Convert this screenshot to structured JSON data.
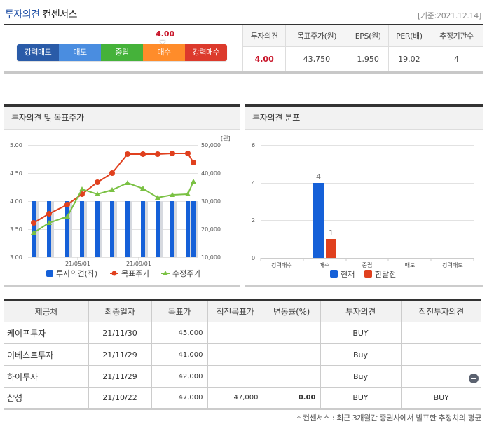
{
  "header": {
    "title_blue": "투자의견",
    "title_dark": "컨센서스",
    "basis_date": "[기준:2021.12.14]"
  },
  "gauge": {
    "value": "4.00",
    "segments": [
      {
        "label": "강력매도",
        "color": "#2a5ba8"
      },
      {
        "label": "매도",
        "color": "#4a8de0"
      },
      {
        "label": "중립",
        "color": "#45b23a"
      },
      {
        "label": "매수",
        "color": "#ff8c2a"
      },
      {
        "label": "강력매수",
        "color": "#dc3a2c"
      }
    ]
  },
  "summary": {
    "headers": [
      "투자의견",
      "목표주가(원)",
      "EPS(원)",
      "PER(배)",
      "추정기관수"
    ],
    "values": [
      "4.00",
      "43,750",
      "1,950",
      "19.02",
      "4"
    ]
  },
  "left_panel": {
    "title": "투자의견 및 목표주가"
  },
  "right_panel": {
    "title": "투자의견 분포"
  },
  "chart_data": [
    {
      "type": "bar+line",
      "title": "투자의견 및 목표주가",
      "x_tick_labels": [
        "21/05/01",
        "21/09/01"
      ],
      "y_left": {
        "ticks": [
          "5.00",
          "4.50",
          "4.00",
          "3.50",
          "3.00"
        ],
        "range": [
          3.0,
          5.0
        ]
      },
      "y_right": {
        "ticks": [
          "50,000",
          "40,000",
          "30,000",
          "20,000",
          "10,000"
        ],
        "range": [
          10000,
          50000
        ],
        "unit": "[원]"
      },
      "series": [
        {
          "name": "투자의견(좌)",
          "type": "bar",
          "color": "#1560d8",
          "values": [
            4.0,
            4.0,
            4.0,
            4.0,
            4.0,
            4.0,
            4.0,
            4.0,
            4.0,
            4.0,
            4.0,
            4.0
          ]
        },
        {
          "name": "목표주가",
          "type": "line",
          "marker": "circle",
          "color": "#e0401e",
          "values": [
            22250,
            25500,
            28750,
            32500,
            36750,
            40000,
            46750,
            46750,
            46750,
            47000,
            47000,
            43750
          ]
        },
        {
          "name": "수정주가",
          "type": "line",
          "marker": "triangle",
          "color": "#7ac143",
          "values": [
            18750,
            22250,
            24500,
            34250,
            32500,
            34000,
            36500,
            34500,
            31250,
            32250,
            32500,
            37000
          ]
        }
      ],
      "legend": [
        "투자의견(좌)",
        "목표주가",
        "수정주가"
      ],
      "legend_position": "bottom",
      "grid": true
    },
    {
      "type": "bar",
      "title": "투자의견 분포",
      "categories": [
        "강력매수",
        "매수",
        "중립",
        "매도",
        "강력매도"
      ],
      "series": [
        {
          "name": "현재",
          "color": "#1560d8",
          "values": [
            0,
            4,
            0,
            0,
            0
          ]
        },
        {
          "name": "한달전",
          "color": "#e0401e",
          "values": [
            0,
            1,
            0,
            0,
            0
          ]
        }
      ],
      "y_ticks": [
        "6",
        "4",
        "2",
        "0"
      ],
      "ylim": [
        0,
        6
      ],
      "data_labels": [
        "4",
        "1"
      ],
      "legend": [
        "현재",
        "한달전"
      ],
      "legend_position": "bottom",
      "grid": true
    }
  ],
  "list": {
    "headers": [
      "제공처",
      "최종일자",
      "목표가",
      "직전목표가",
      "변동률(%)",
      "투자의견",
      "직전투자의견"
    ],
    "rows": [
      {
        "provider": "케이프투자",
        "date": "21/11/30",
        "target": "45,000",
        "prev_target": "",
        "change": "",
        "opinion": "BUY",
        "prev_opinion": ""
      },
      {
        "provider": "이베스트투자",
        "date": "21/11/29",
        "target": "41,000",
        "prev_target": "",
        "change": "",
        "opinion": "Buy",
        "prev_opinion": ""
      },
      {
        "provider": "하이투자",
        "date": "21/11/29",
        "target": "42,000",
        "prev_target": "",
        "change": "",
        "opinion": "Buy",
        "prev_opinion": ""
      },
      {
        "provider": "삼성",
        "date": "21/10/22",
        "target": "47,000",
        "prev_target": "47,000",
        "change": "0.00",
        "opinion": "BUY",
        "prev_opinion": "BUY"
      }
    ]
  },
  "footnote": "* 컨센서스 : 최근 3개월간 증권사에서 발표한 추정치의 평균"
}
